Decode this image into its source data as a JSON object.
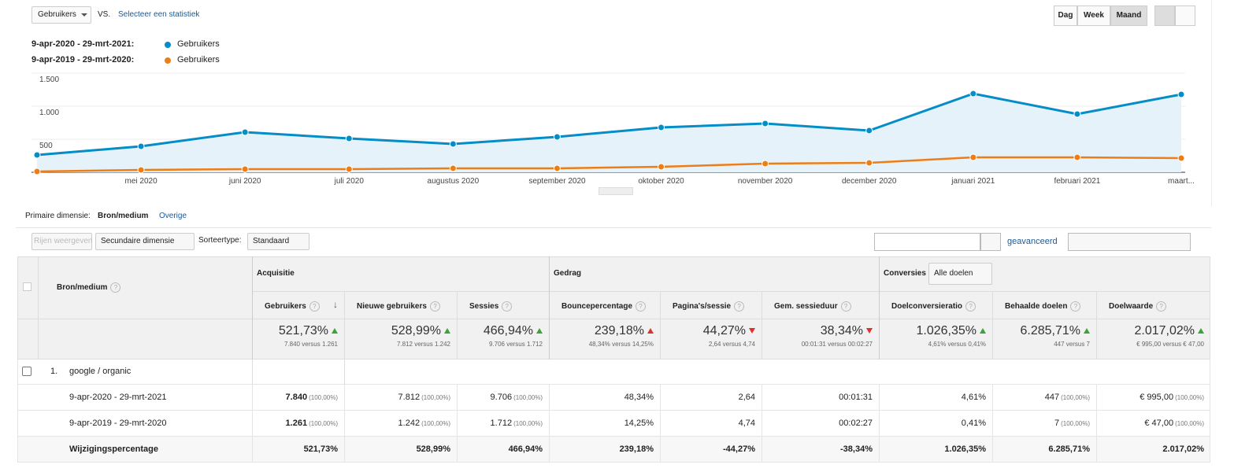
{
  "toolbar": {
    "metric": "Gebruikers",
    "vs": "VS.",
    "compare": "Selecteer een statistiek",
    "periods": [
      "Dag",
      "Week",
      "Maand"
    ],
    "active_period": 2
  },
  "chart_data": {
    "type": "line",
    "categories": [
      null,
      "mei 2020",
      "juni 2020",
      "juli 2020",
      "augustus 2020",
      "september 2020",
      "oktober 2020",
      "november 2020",
      "december 2020",
      "januari 2021",
      "februari 2021",
      "maart..."
    ],
    "series": [
      {
        "name": "Gebruikers",
        "period": "9-apr-2020 - 29-mrt-2021:",
        "color": "#058dc7",
        "fill_area": true,
        "values": [
          262,
          393,
          607,
          512,
          429,
          536,
          679,
          738,
          631,
          1190,
          881,
          1179
        ]
      },
      {
        "name": "Gebruikers",
        "period": "9-apr-2019 - 29-mrt-2020:",
        "color": "#ed7e17",
        "fill_area": false,
        "values": [
          12,
          36,
          48,
          48,
          60,
          60,
          83,
          131,
          143,
          226,
          226,
          214
        ]
      }
    ],
    "ylim": [
      0,
      1500
    ],
    "yticks": [
      500,
      {
        "value": 1000,
        "label": "1.000"
      },
      {
        "value": 1500,
        "label": "1.500"
      }
    ],
    "grid": true
  },
  "dimension_bar": {
    "label": "Primaire dimensie:",
    "value": "Bron/medium",
    "other": "Overige"
  },
  "controls": {
    "rows": "Rijen weergeven",
    "secondary": "Secundaire dimensie",
    "sort_label": "Sorteertype:",
    "sort": "Standaard",
    "advanced": "geavanceerd"
  },
  "table": {
    "dimension": "Bron/medium",
    "groups": [
      {
        "label": "Acquisitie"
      },
      {
        "label": "Gedrag"
      },
      {
        "label": "Conversies",
        "select": "Alle doelen"
      }
    ],
    "columns": [
      {
        "label": "Gebruikers",
        "sorted": true
      },
      {
        "label": "Nieuwe gebruikers"
      },
      {
        "label": "Sessies"
      },
      {
        "label": "Bouncepercentage"
      },
      {
        "label": "Pagina's/sessie"
      },
      {
        "label": "Gem. sessieduur"
      },
      {
        "label": "Doelconversieratio"
      },
      {
        "label": "Behaalde doelen"
      },
      {
        "label": "Doelwaarde"
      }
    ],
    "totals": [
      {
        "value": "521,73%",
        "trend": "up",
        "good": true,
        "compare": "7.840 versus 1.261"
      },
      {
        "value": "528,99%",
        "trend": "up",
        "good": true,
        "compare": "7.812 versus 1.242"
      },
      {
        "value": "466,94%",
        "trend": "up",
        "good": true,
        "compare": "9.706 versus 1.712"
      },
      {
        "value": "239,18%",
        "trend": "up",
        "good": false,
        "compare": "48,34% versus 14,25%"
      },
      {
        "value": "44,27%",
        "trend": "down",
        "good": false,
        "compare": "2,64 versus 4,74"
      },
      {
        "value": "38,34%",
        "trend": "down",
        "good": false,
        "compare": "00:01:31 versus 00:02:27"
      },
      {
        "value": "1.026,35%",
        "trend": "up",
        "good": true,
        "compare": "4,61% versus 0,41%"
      },
      {
        "value": "6.285,71%",
        "trend": "up",
        "good": true,
        "compare": "447 versus 7"
      },
      {
        "value": "2.017,02%",
        "trend": "up",
        "good": true,
        "compare": "€ 995,00 versus € 47,00"
      }
    ],
    "rows": [
      {
        "index": "1.",
        "label": "google / organic",
        "subrows": [
          {
            "label": "9-apr-2020 - 29-mrt-2021",
            "cells": [
              {
                "v": "7.840",
                "s": "(100,00%)"
              },
              {
                "v": "7.812",
                "s": "(100,00%)"
              },
              {
                "v": "9.706",
                "s": "(100,00%)"
              },
              {
                "v": "48,34%"
              },
              {
                "v": "2,64"
              },
              {
                "v": "00:01:31"
              },
              {
                "v": "4,61%"
              },
              {
                "v": "447",
                "s": "(100,00%)"
              },
              {
                "v": "€ 995,00",
                "s": "(100,00%)"
              }
            ]
          },
          {
            "label": "9-apr-2019 - 29-mrt-2020",
            "cells": [
              {
                "v": "1.261",
                "s": "(100,00%)"
              },
              {
                "v": "1.242",
                "s": "(100,00%)"
              },
              {
                "v": "1.712",
                "s": "(100,00%)"
              },
              {
                "v": "14,25%"
              },
              {
                "v": "4,74"
              },
              {
                "v": "00:02:27"
              },
              {
                "v": "0,41%"
              },
              {
                "v": "7",
                "s": "(100,00%)"
              },
              {
                "v": "€ 47,00",
                "s": "(100,00%)"
              }
            ]
          },
          {
            "label": "Wijzigingspercentage",
            "bold": true,
            "cells": [
              {
                "v": "521,73%"
              },
              {
                "v": "528,99%"
              },
              {
                "v": "466,94%"
              },
              {
                "v": "239,18%"
              },
              {
                "v": "-44,27%"
              },
              {
                "v": "-38,34%"
              },
              {
                "v": "1.026,35%"
              },
              {
                "v": "6.285,71%"
              },
              {
                "v": "2.017,02%"
              }
            ]
          }
        ]
      }
    ]
  }
}
